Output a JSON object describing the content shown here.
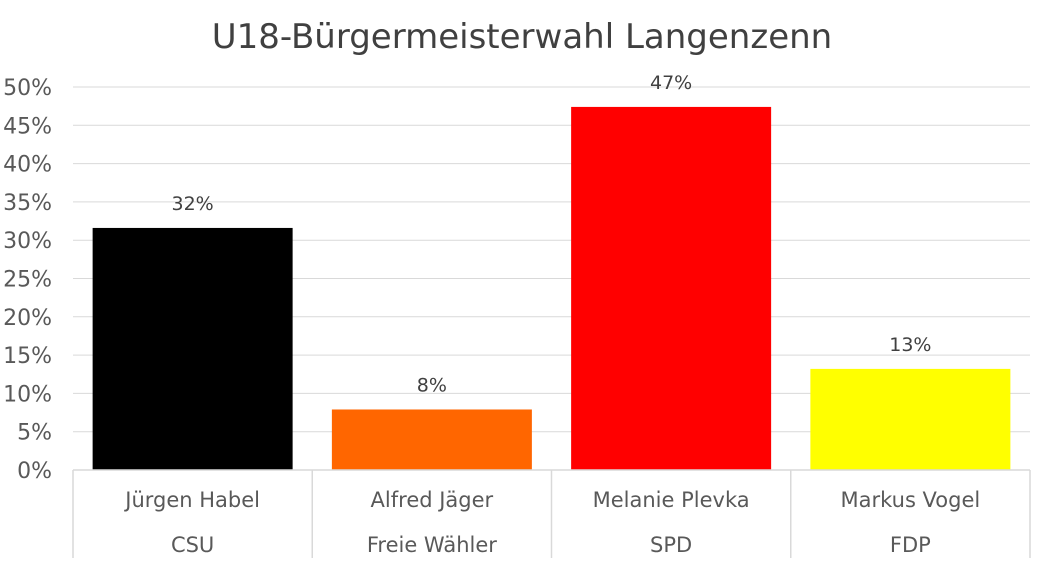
{
  "chart_data": {
    "type": "bar",
    "title": "U18-Bürgermeisterwahl Langenzenn",
    "xlabel": "",
    "ylabel": "",
    "ylim": [
      0,
      50
    ],
    "y_ticks": [
      "0%",
      "5%",
      "10%",
      "15%",
      "20%",
      "25%",
      "30%",
      "35%",
      "40%",
      "45%",
      "50%"
    ],
    "grid": true,
    "legend": "none",
    "categories": [
      {
        "candidate": "Jürgen Habel",
        "party": "CSU"
      },
      {
        "candidate": "Alfred Jäger",
        "party": "Freie Wähler"
      },
      {
        "candidate": "Melanie Plevka",
        "party": "SPD"
      },
      {
        "candidate": "Markus Vogel",
        "party": "FDP"
      }
    ],
    "values": [
      31.6,
      7.9,
      47.4,
      13.2
    ],
    "data_labels": [
      "32%",
      "8%",
      "47%",
      "13%"
    ],
    "colors": [
      "#000000",
      "#ff6600",
      "#ff0000",
      "#ffff00"
    ]
  }
}
